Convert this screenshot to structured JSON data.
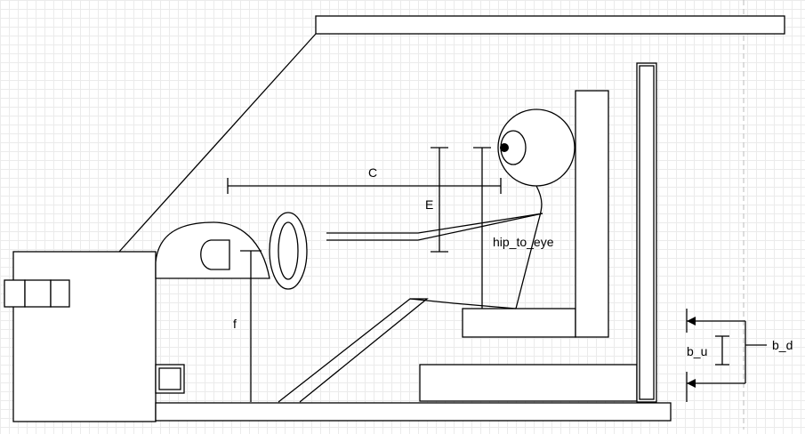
{
  "diagram": {
    "labels": {
      "c": "C",
      "e": "E",
      "hip_to_eye": "hip_to_eye",
      "f": "f",
      "b_u": "b_u",
      "b_d": "b_d"
    }
  }
}
